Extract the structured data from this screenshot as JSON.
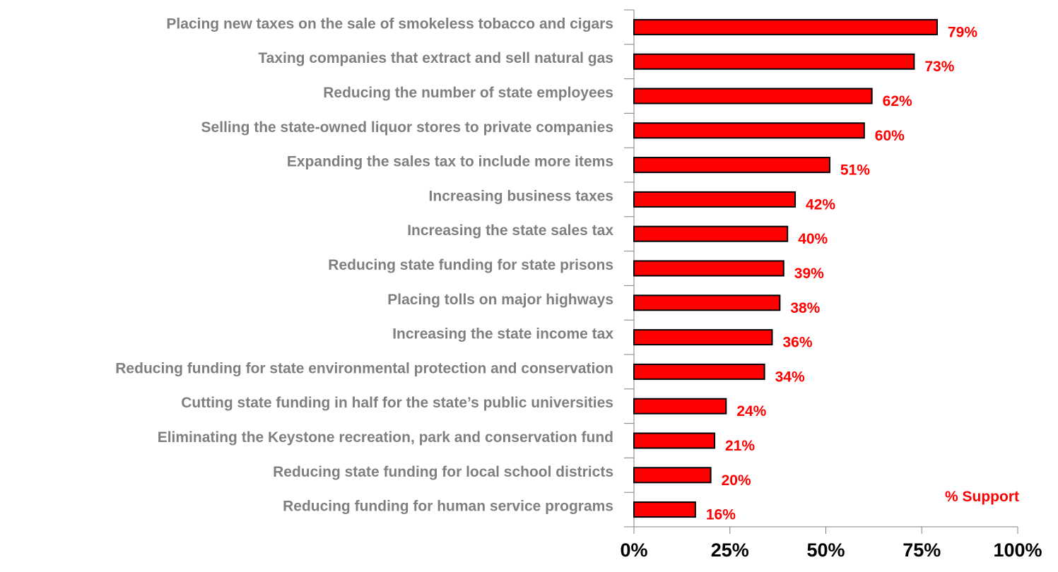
{
  "chart_data": {
    "type": "bar",
    "orientation": "horizontal",
    "categories": [
      "Placing new taxes on the sale of smokeless tobacco and cigars",
      "Taxing companies that extract and sell natural gas",
      "Reducing the number of state employees",
      "Selling the state-owned liquor stores to private companies",
      "Expanding the sales tax to include more items",
      "Increasing business taxes",
      "Increasing the state sales tax",
      "Reducing state funding for state prisons",
      "Placing tolls on major highways",
      "Increasing the state income tax",
      "Reducing funding for state environmental protection and conservation",
      "Cutting state funding in half for the state’s public universities",
      "Eliminating the Keystone recreation, park and conservation fund",
      "Reducing state funding for local school districts",
      "Reducing funding for human service programs"
    ],
    "series": [
      {
        "name": "% Support",
        "values": [
          79,
          73,
          62,
          60,
          51,
          42,
          40,
          39,
          38,
          36,
          34,
          24,
          21,
          20,
          16
        ],
        "value_labels": [
          "79%",
          "73%",
          "62%",
          "60%",
          "51%",
          "42%",
          "40%",
          "39%",
          "38%",
          "36%",
          "34%",
          "24%",
          "21%",
          "20%",
          "16%"
        ]
      }
    ],
    "xlim": [
      0,
      100
    ],
    "x_ticks": [
      0,
      25,
      50,
      75,
      100
    ],
    "x_tick_labels": [
      "0%",
      "25%",
      "50%",
      "75%",
      "100%"
    ],
    "title": "",
    "xlabel": "",
    "ylabel": "",
    "grid": false,
    "legend_position": "bottom-right",
    "colors": {
      "bar_fill": "#ff0000",
      "bar_stroke": "#000000",
      "category_text": "#7f7f7f",
      "value_text": "#ff0000",
      "tick_text": "#000000",
      "axis": "#808080"
    }
  }
}
